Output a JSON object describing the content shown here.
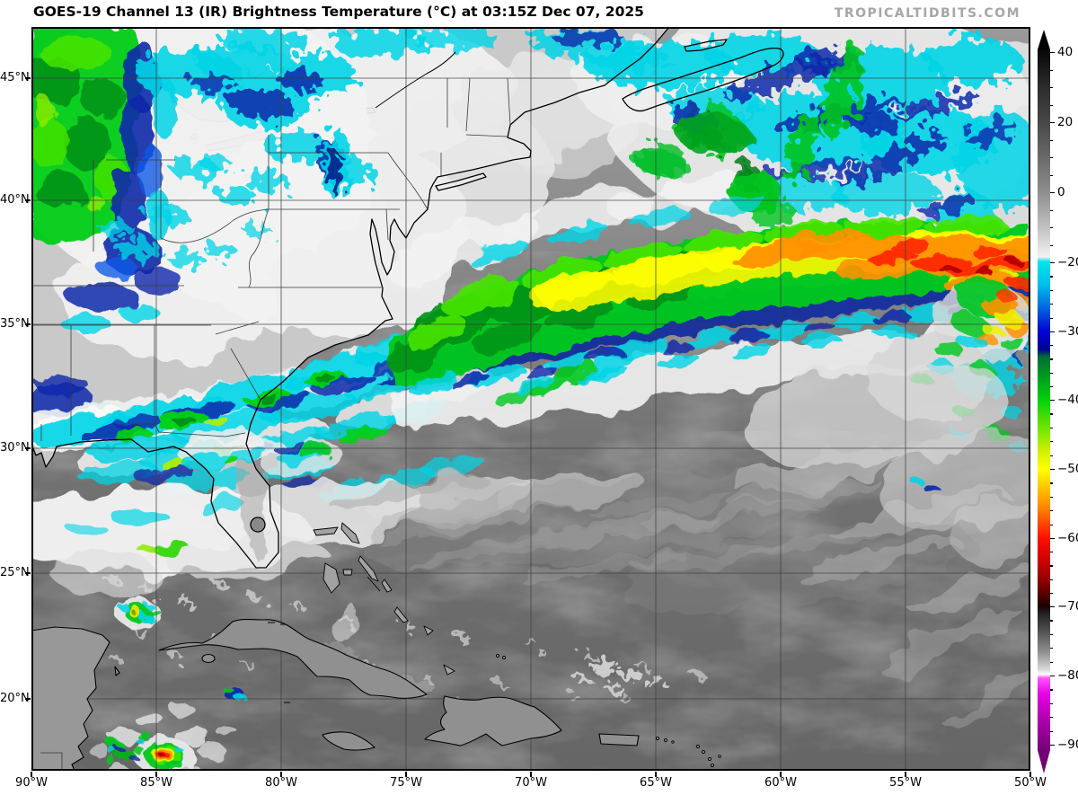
{
  "header": {
    "title": "GOES-19 Channel 13 (IR) Brightness Temperature (°C) at 03:15Z Dec 07, 2025",
    "watermark": "TROPICALTIDBITS.COM"
  },
  "map": {
    "lat_labels": [
      "45°N",
      "40°N",
      "35°N",
      "30°N",
      "25°N",
      "20°N"
    ],
    "lon_labels": [
      "90°W",
      "85°W",
      "80°W",
      "75°W",
      "70°W",
      "65°W",
      "60°W",
      "55°W",
      "50°W"
    ]
  },
  "colorbar": {
    "tick_labels": [
      "40",
      "20",
      "0",
      "−20",
      "−30",
      "−40",
      "−50",
      "−60",
      "−70",
      "−80",
      "−90"
    ]
  },
  "colors": {
    "cold_cyan": "#00d4e6",
    "cold_navy": "#0a28aa",
    "cold_green": "#00c81e",
    "cold_yellow": "#f5f500",
    "cold_orange": "#ff9100",
    "cold_red": "#ff2800",
    "very_cold_magenta": "#e600e6",
    "very_cold_purple": "#800080",
    "warm_gray": "#6d6d6d"
  }
}
